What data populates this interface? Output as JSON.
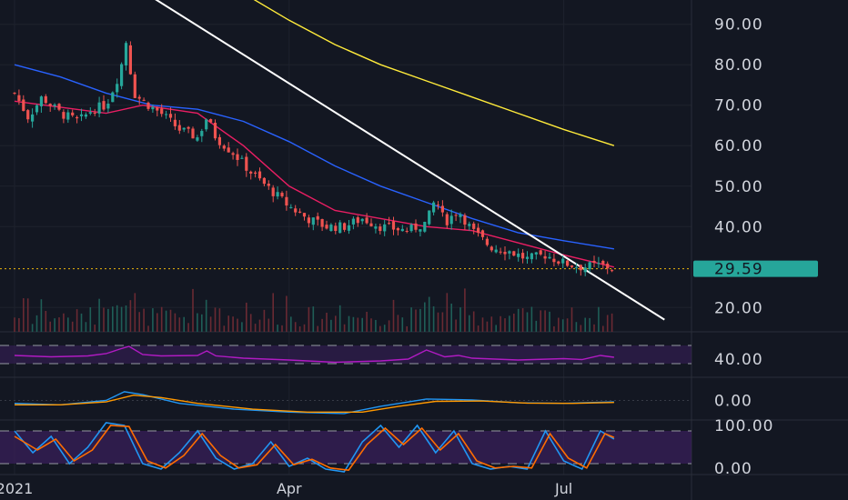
{
  "chart_data": [
    {
      "type": "candlestick",
      "title": "",
      "price_axis": {
        "range": [
          14,
          96
        ],
        "ticks": [
          {
            "value": 90,
            "label": "90.00"
          },
          {
            "value": 80,
            "label": "80.00"
          },
          {
            "value": 70,
            "label": "70.00"
          },
          {
            "value": 60,
            "label": "60.00"
          },
          {
            "value": 50,
            "label": "50.00"
          },
          {
            "value": 40,
            "label": "40.00"
          },
          {
            "value": 20,
            "label": "20.00"
          }
        ],
        "last_price": {
          "value": 29.59,
          "label": "29.59",
          "color": "#26a69a"
        }
      },
      "time_axis": {
        "labels": [
          {
            "label": "2021",
            "month": 0
          },
          {
            "label": "Apr",
            "month": 3
          },
          {
            "label": "Jul",
            "month": 6
          }
        ]
      },
      "ohlc_anchors": [
        {
          "t": 0.0,
          "close": 73
        },
        {
          "t": 0.15,
          "close": 67
        },
        {
          "t": 0.3,
          "close": 72
        },
        {
          "t": 0.5,
          "close": 68
        },
        {
          "t": 0.7,
          "close": 66
        },
        {
          "t": 0.85,
          "close": 69
        },
        {
          "t": 1.0,
          "close": 70
        },
        {
          "t": 1.15,
          "close": 78
        },
        {
          "t": 1.22,
          "close": 86
        },
        {
          "t": 1.3,
          "close": 73
        },
        {
          "t": 1.4,
          "close": 71
        },
        {
          "t": 1.6,
          "close": 68
        },
        {
          "t": 1.8,
          "close": 64
        },
        {
          "t": 2.0,
          "close": 62
        },
        {
          "t": 2.1,
          "close": 67
        },
        {
          "t": 2.2,
          "close": 62
        },
        {
          "t": 2.4,
          "close": 58
        },
        {
          "t": 2.6,
          "close": 53
        },
        {
          "t": 2.8,
          "close": 49
        },
        {
          "t": 3.0,
          "close": 45
        },
        {
          "t": 3.2,
          "close": 42
        },
        {
          "t": 3.4,
          "close": 40
        },
        {
          "t": 3.6,
          "close": 40
        },
        {
          "t": 3.8,
          "close": 42
        },
        {
          "t": 4.0,
          "close": 40
        },
        {
          "t": 4.3,
          "close": 39
        },
        {
          "t": 4.5,
          "close": 41
        },
        {
          "t": 4.6,
          "close": 47
        },
        {
          "t": 4.7,
          "close": 41
        },
        {
          "t": 4.85,
          "close": 44
        },
        {
          "t": 5.0,
          "close": 39
        },
        {
          "t": 5.2,
          "close": 35
        },
        {
          "t": 5.4,
          "close": 34
        },
        {
          "t": 5.6,
          "close": 32
        },
        {
          "t": 5.8,
          "close": 33
        },
        {
          "t": 6.0,
          "close": 31
        },
        {
          "t": 6.2,
          "close": 30
        },
        {
          "t": 6.4,
          "close": 30.5
        },
        {
          "t": 6.55,
          "close": 29.59
        }
      ],
      "overlays": [
        {
          "name": "",
          "color": "#e91e63",
          "points": [
            [
              0,
              71
            ],
            [
              1.0,
              68
            ],
            [
              1.4,
              70
            ],
            [
              2.0,
              68
            ],
            [
              2.5,
              60
            ],
            [
              3.0,
              50
            ],
            [
              3.5,
              44
            ],
            [
              4.0,
              42
            ],
            [
              4.5,
              40
            ],
            [
              5.0,
              39
            ],
            [
              5.5,
              36
            ],
            [
              6.0,
              33
            ],
            [
              6.55,
              30
            ]
          ]
        },
        {
          "name": "",
          "color": "#2962ff",
          "points": [
            [
              0,
              80
            ],
            [
              0.5,
              77
            ],
            [
              1.0,
              73
            ],
            [
              1.5,
              70
            ],
            [
              2.0,
              69
            ],
            [
              2.5,
              66
            ],
            [
              3.0,
              61
            ],
            [
              3.5,
              55
            ],
            [
              4.0,
              50
            ],
            [
              4.5,
              46
            ],
            [
              5.0,
              42
            ],
            [
              5.5,
              38.5
            ],
            [
              6.0,
              36.5
            ],
            [
              6.55,
              34.5
            ]
          ]
        },
        {
          "name": "",
          "color": "#ffeb3b",
          "points": [
            [
              2.4,
              99
            ],
            [
              3.0,
              91
            ],
            [
              3.5,
              85
            ],
            [
              4.0,
              80
            ],
            [
              4.5,
              76
            ],
            [
              5.0,
              72
            ],
            [
              5.5,
              68
            ],
            [
              6.0,
              64
            ],
            [
              6.55,
              60
            ]
          ]
        },
        {
          "name": "",
          "color": "#ffffff",
          "points": [
            [
              1.2,
              101
            ],
            [
              7.1,
              17
            ]
          ]
        }
      ],
      "volume_colors": {
        "up": "#1f5e57",
        "down": "#6a2a33"
      }
    },
    {
      "type": "line",
      "indicator": "rsi",
      "y_axis_label": "40.00",
      "band_range": [
        30,
        70
      ],
      "color": "#b01bc2",
      "values": [
        [
          0,
          48
        ],
        [
          0.4,
          45
        ],
        [
          0.8,
          47
        ],
        [
          1.0,
          52
        ],
        [
          1.15,
          62
        ],
        [
          1.25,
          68
        ],
        [
          1.4,
          50
        ],
        [
          1.6,
          47
        ],
        [
          2.0,
          48
        ],
        [
          2.1,
          58
        ],
        [
          2.2,
          47
        ],
        [
          2.5,
          42
        ],
        [
          3.0,
          38
        ],
        [
          3.5,
          33
        ],
        [
          4.0,
          36
        ],
        [
          4.3,
          40
        ],
        [
          4.5,
          60
        ],
        [
          4.7,
          45
        ],
        [
          4.85,
          48
        ],
        [
          5.0,
          42
        ],
        [
          5.5,
          38
        ],
        [
          6.0,
          41
        ],
        [
          6.2,
          39
        ],
        [
          6.4,
          48
        ],
        [
          6.55,
          44
        ]
      ]
    },
    {
      "type": "line",
      "indicator": "macd",
      "y_axis_label": "0.00",
      "series": [
        {
          "name": "",
          "color": "#2196f3",
          "values": [
            [
              0,
              -1
            ],
            [
              0.5,
              -1.5
            ],
            [
              1.0,
              0
            ],
            [
              1.2,
              3
            ],
            [
              1.4,
              2
            ],
            [
              1.8,
              -1
            ],
            [
              2.4,
              -3
            ],
            [
              3.0,
              -4
            ],
            [
              3.6,
              -4.5
            ],
            [
              4.0,
              -2
            ],
            [
              4.5,
              0.5
            ],
            [
              5.0,
              0.2
            ],
            [
              5.5,
              -0.8
            ],
            [
              6.0,
              -1
            ],
            [
              6.55,
              -0.5
            ]
          ]
        },
        {
          "name": "",
          "color": "#ff9800",
          "values": [
            [
              0,
              -1.5
            ],
            [
              0.5,
              -1.5
            ],
            [
              1.0,
              -0.5
            ],
            [
              1.3,
              1.8
            ],
            [
              1.6,
              1
            ],
            [
              2.0,
              -1
            ],
            [
              2.6,
              -3
            ],
            [
              3.2,
              -4
            ],
            [
              3.8,
              -4
            ],
            [
              4.2,
              -2
            ],
            [
              4.6,
              -0.3
            ],
            [
              5.1,
              -0.2
            ],
            [
              5.6,
              -0.9
            ],
            [
              6.1,
              -1
            ],
            [
              6.55,
              -0.7
            ]
          ]
        }
      ]
    },
    {
      "type": "line",
      "indicator": "stochastic",
      "y_axis_labels": [
        "100.00",
        "0.00"
      ],
      "band_range": [
        20,
        80
      ],
      "series": [
        {
          "name": "",
          "color": "#2196f3",
          "values": [
            [
              0,
              80
            ],
            [
              0.2,
              40
            ],
            [
              0.4,
              70
            ],
            [
              0.6,
              20
            ],
            [
              0.8,
              50
            ],
            [
              1.0,
              95
            ],
            [
              1.2,
              90
            ],
            [
              1.4,
              20
            ],
            [
              1.6,
              10
            ],
            [
              1.8,
              40
            ],
            [
              2.0,
              80
            ],
            [
              2.2,
              30
            ],
            [
              2.4,
              10
            ],
            [
              2.6,
              20
            ],
            [
              2.8,
              60
            ],
            [
              3.0,
              15
            ],
            [
              3.2,
              30
            ],
            [
              3.4,
              10
            ],
            [
              3.6,
              5
            ],
            [
              3.8,
              60
            ],
            [
              4.0,
              90
            ],
            [
              4.2,
              50
            ],
            [
              4.4,
              90
            ],
            [
              4.6,
              40
            ],
            [
              4.8,
              80
            ],
            [
              5.0,
              20
            ],
            [
              5.2,
              10
            ],
            [
              5.4,
              15
            ],
            [
              5.6,
              10
            ],
            [
              5.8,
              80
            ],
            [
              6.0,
              25
            ],
            [
              6.2,
              10
            ],
            [
              6.4,
              80
            ],
            [
              6.55,
              65
            ]
          ]
        },
        {
          "name": "",
          "color": "#ff6d00",
          "values": [
            [
              0,
              70
            ],
            [
              0.25,
              45
            ],
            [
              0.45,
              65
            ],
            [
              0.65,
              25
            ],
            [
              0.85,
              45
            ],
            [
              1.05,
              90
            ],
            [
              1.25,
              88
            ],
            [
              1.45,
              25
            ],
            [
              1.65,
              12
            ],
            [
              1.85,
              35
            ],
            [
              2.05,
              75
            ],
            [
              2.25,
              35
            ],
            [
              2.45,
              12
            ],
            [
              2.65,
              18
            ],
            [
              2.85,
              55
            ],
            [
              3.05,
              18
            ],
            [
              3.25,
              28
            ],
            [
              3.45,
              12
            ],
            [
              3.65,
              8
            ],
            [
              3.85,
              55
            ],
            [
              4.05,
              85
            ],
            [
              4.25,
              55
            ],
            [
              4.45,
              85
            ],
            [
              4.65,
              45
            ],
            [
              4.85,
              75
            ],
            [
              5.05,
              25
            ],
            [
              5.25,
              12
            ],
            [
              5.45,
              15
            ],
            [
              5.65,
              12
            ],
            [
              5.85,
              75
            ],
            [
              6.05,
              30
            ],
            [
              6.25,
              12
            ],
            [
              6.45,
              75
            ],
            [
              6.55,
              68
            ]
          ]
        }
      ]
    }
  ]
}
